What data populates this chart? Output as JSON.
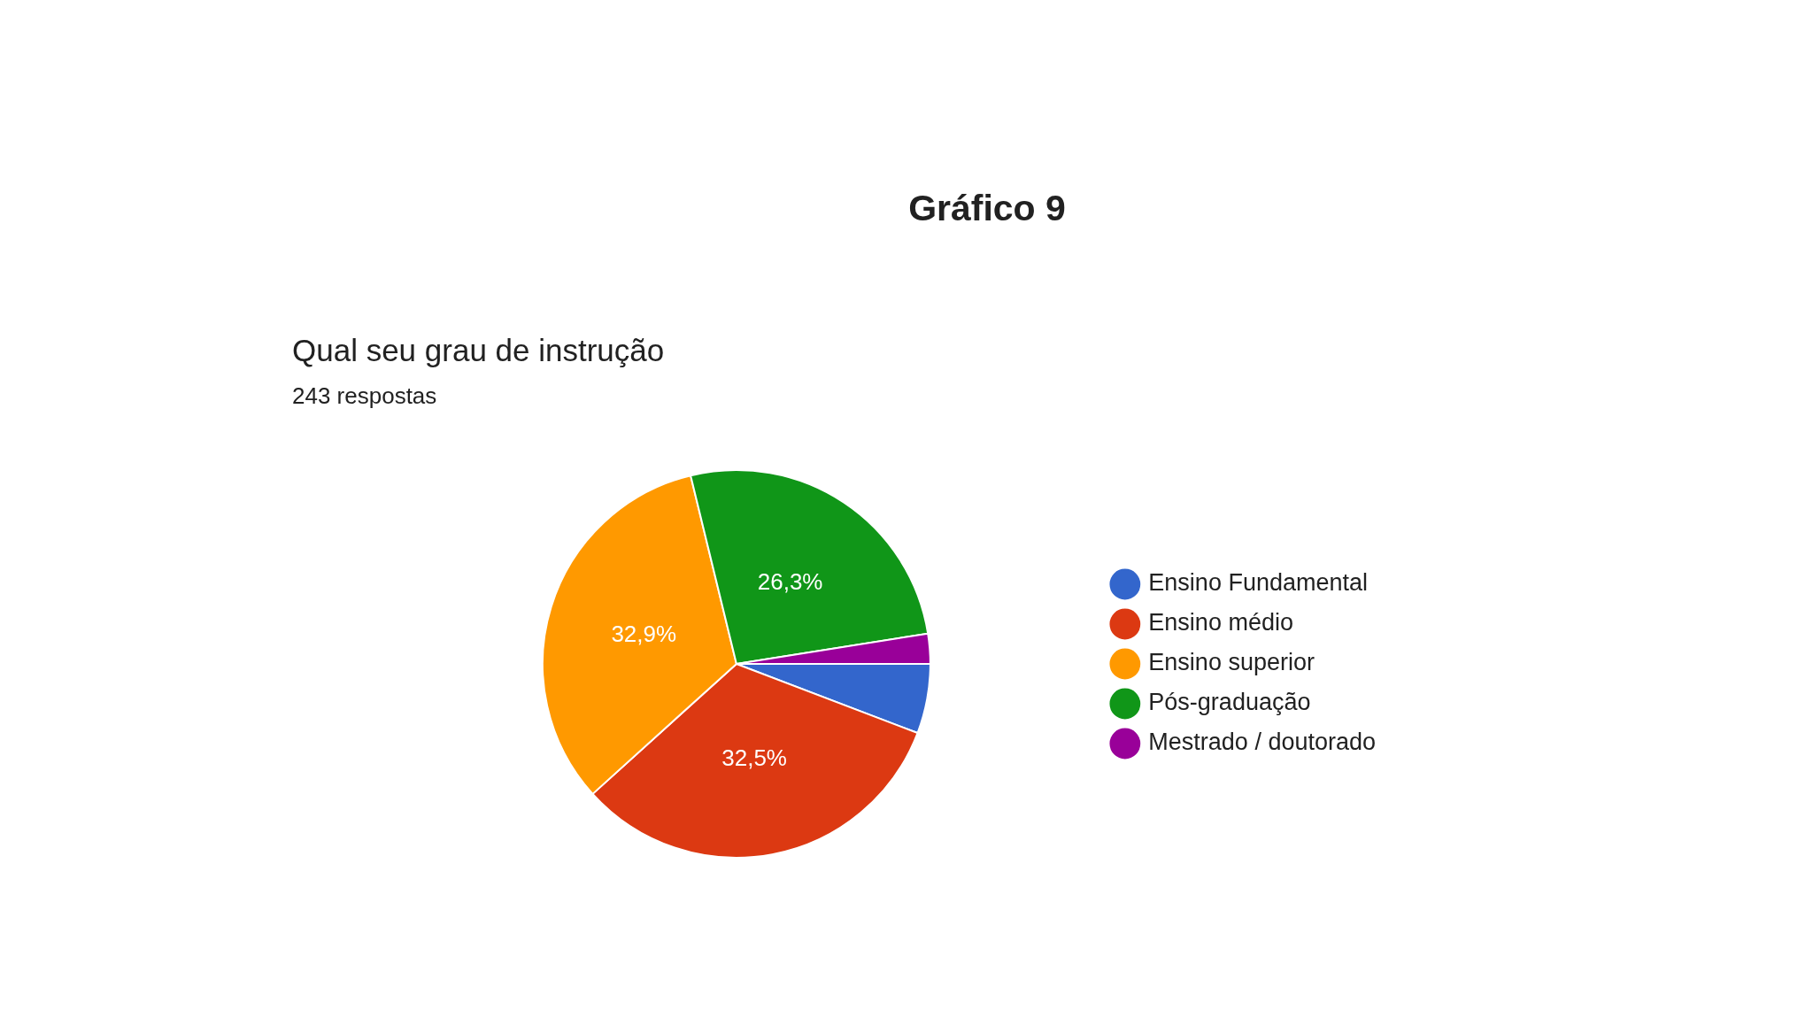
{
  "chart_data": {
    "type": "pie",
    "title": "Gráfico 9",
    "subtitle": "Qual seu grau de instrução",
    "annotations": [
      "243 respostas"
    ],
    "categories": [
      "Ensino Fundamental",
      "Ensino médio",
      "Ensino superior",
      "Pós-graduação",
      "Mestrado / doutorado"
    ],
    "values": [
      5.8,
      32.5,
      32.9,
      26.3,
      2.5
    ],
    "colors": [
      "#3366cc",
      "#dc3912",
      "#ff9900",
      "#109618",
      "#990099"
    ],
    "value_labels": [
      null,
      "32,5%",
      "32,9%",
      "26,3%",
      null
    ],
    "legend": "right"
  }
}
